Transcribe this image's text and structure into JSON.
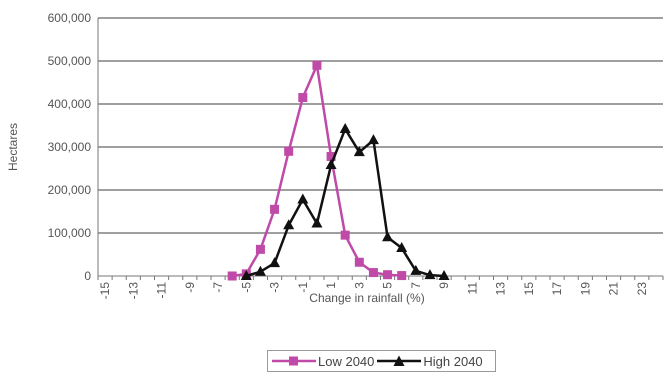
{
  "chart_data": {
    "type": "line",
    "xlabel": "Change in rainfall (%)",
    "ylabel": "Hectares",
    "ylim": [
      0,
      600000
    ],
    "yticks": [
      "0",
      "100,000",
      "200,000",
      "300,000",
      "400,000",
      "500,000",
      "600,000"
    ],
    "x_categories": [
      "-15",
      "-14",
      "-13",
      "-12",
      "-11",
      "-10",
      "-9",
      "-8",
      "-7",
      "-6",
      "-5",
      "-4",
      "-3",
      "-2",
      "-1",
      "0",
      "1",
      "2",
      "3",
      "4",
      "5",
      "6",
      "7",
      "8",
      "9",
      "10",
      "11",
      "12",
      "13",
      "14",
      "15",
      "16",
      "17",
      "18",
      "19",
      "20",
      "21",
      "22",
      "23",
      "24"
    ],
    "x_tick_labels": [
      "-15",
      "-13",
      "-11",
      "-9",
      "-7",
      "-5",
      "-3",
      "-1",
      "1",
      "3",
      "5",
      "7",
      "9",
      "11",
      "13",
      "15",
      "17",
      "19",
      "21",
      "23"
    ],
    "grid": "horizontal",
    "legend_position": "bottom",
    "series": [
      {
        "name": "Low 2040",
        "color": "#c04aa8",
        "marker": "square",
        "x": [
          -6,
          -5,
          -4,
          -3,
          -2,
          -1,
          0,
          1,
          2,
          3,
          4,
          5,
          6
        ],
        "values": [
          0,
          5000,
          62000,
          155000,
          290000,
          415000,
          490000,
          278000,
          95000,
          32000,
          8000,
          3000,
          1000
        ]
      },
      {
        "name": "High 2040",
        "color": "#111111",
        "marker": "triangle",
        "x": [
          -5,
          -4,
          -3,
          -2,
          -1,
          0,
          1,
          2,
          3,
          4,
          5,
          6,
          7,
          8,
          9
        ],
        "values": [
          0,
          10000,
          30000,
          118000,
          178000,
          122000,
          258000,
          342000,
          288000,
          316000,
          90000,
          65000,
          12000,
          2000,
          0
        ]
      }
    ]
  }
}
